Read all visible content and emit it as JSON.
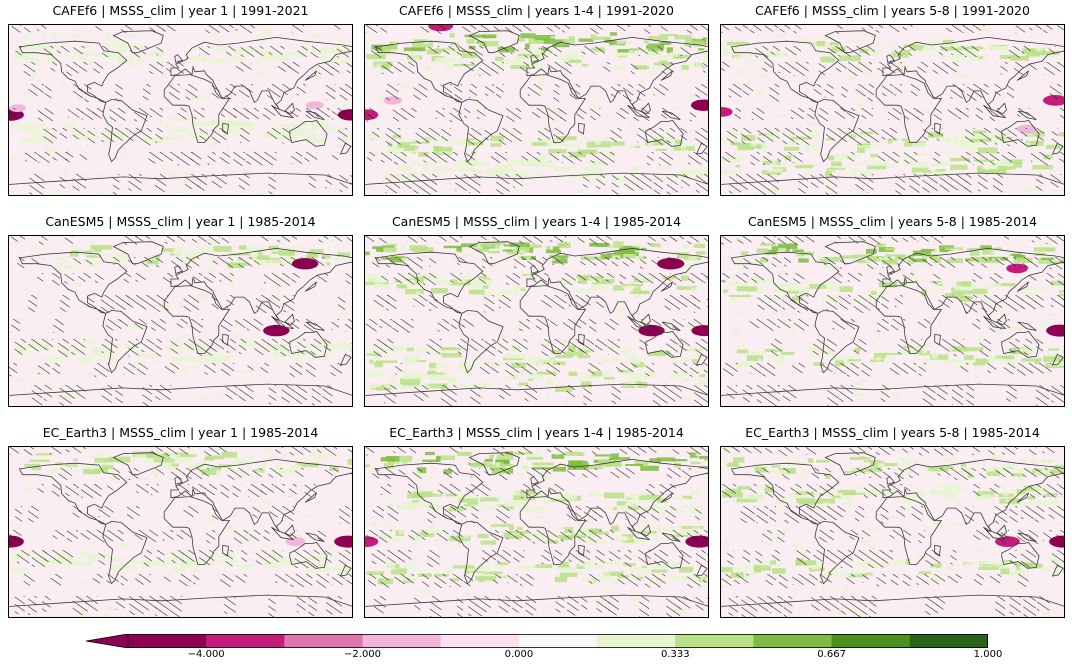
{
  "colors": {
    "scale": [
      "#8e0152",
      "#c51b7d",
      "#de77ae",
      "#f1b6da",
      "#fde0ef",
      "#f7f7f7",
      "#e6f5d0",
      "#b8e186",
      "#7fbc41",
      "#4d9221",
      "#276419"
    ],
    "land_bg": "#fbeef3",
    "coast": "#3a3a3a",
    "hatch": "#1a1a1a"
  },
  "chart_data": [
    {
      "type": "heatmap",
      "title": "CAFEf6 | MSSS_clim | year 1 | 1991-2021",
      "model": "CAFEf6",
      "lead": "year 1",
      "green_bands": [
        {
          "lat": 60,
          "strength": 0.25
        },
        {
          "lat": -20,
          "strength": 0.2
        }
      ],
      "pink_spots": [
        {
          "lon": -178,
          "lat": -5,
          "strength": 1.0
        },
        {
          "lon": 178,
          "lat": -5,
          "strength": 0.9
        },
        {
          "lon": 140,
          "lat": 5,
          "strength": 0.35
        },
        {
          "lon": -170,
          "lat": 2,
          "strength": 0.3
        }
      ]
    },
    {
      "type": "heatmap",
      "title": "CAFEf6 | MSSS_clim | years 1-4 | 1991-2020",
      "model": "CAFEf6",
      "lead": "years 1-4",
      "green_bands": [
        {
          "lat": 72,
          "strength": 0.7
        },
        {
          "lat": 55,
          "strength": 0.5
        },
        {
          "lat": -35,
          "strength": 0.45
        },
        {
          "lat": -60,
          "strength": 0.4
        }
      ],
      "pink_spots": [
        {
          "lon": -178,
          "lat": -5,
          "strength": 0.8
        },
        {
          "lon": 175,
          "lat": 5,
          "strength": 0.9
        },
        {
          "lon": -150,
          "lat": 10,
          "strength": 0.4
        },
        {
          "lon": -100,
          "lat": 88,
          "strength": 0.8
        }
      ]
    },
    {
      "type": "heatmap",
      "title": "CAFEf6 | MSSS_clim | years 5-8 | 1991-2020",
      "model": "CAFEf6",
      "lead": "years 5-8",
      "green_bands": [
        {
          "lat": 65,
          "strength": 0.6
        },
        {
          "lat": -30,
          "strength": 0.5
        },
        {
          "lat": -55,
          "strength": 0.6
        }
      ],
      "pink_spots": [
        {
          "lon": -178,
          "lat": -2,
          "strength": 0.6
        },
        {
          "lon": 170,
          "lat": 10,
          "strength": 0.8
        },
        {
          "lon": 140,
          "lat": -20,
          "strength": 0.5
        }
      ]
    },
    {
      "type": "heatmap",
      "title": "CanESM5 | MSSS_clim | year 1 | 1985-2014",
      "model": "CanESM5",
      "lead": "year 1",
      "green_bands": [
        {
          "lat": 70,
          "strength": 0.5
        },
        {
          "lat": -30,
          "strength": 0.3
        }
      ],
      "pink_spots": [
        {
          "lon": 100,
          "lat": -10,
          "strength": 0.9
        },
        {
          "lon": 130,
          "lat": 60,
          "strength": 0.9
        }
      ]
    },
    {
      "type": "heatmap",
      "title": "CanESM5 | MSSS_clim | years 1-4 | 1985-2014",
      "model": "CanESM5",
      "lead": "years 1-4",
      "green_bands": [
        {
          "lat": 75,
          "strength": 0.75
        },
        {
          "lat": 40,
          "strength": 0.55
        },
        {
          "lat": -35,
          "strength": 0.6
        },
        {
          "lat": -60,
          "strength": 0.5
        }
      ],
      "pink_spots": [
        {
          "lon": 120,
          "lat": -10,
          "strength": 0.9
        },
        {
          "lon": 175,
          "lat": -10,
          "strength": 0.85
        },
        {
          "lon": 140,
          "lat": 60,
          "strength": 0.95
        }
      ]
    },
    {
      "type": "heatmap",
      "title": "CanESM5 | MSSS_clim | years 5-8 | 1985-2014",
      "model": "CanESM5",
      "lead": "years 5-8",
      "green_bands": [
        {
          "lat": 72,
          "strength": 0.7
        },
        {
          "lat": 35,
          "strength": 0.5
        },
        {
          "lat": -35,
          "strength": 0.45
        }
      ],
      "pink_spots": [
        {
          "lon": 175,
          "lat": -10,
          "strength": 1.0
        },
        {
          "lon": 130,
          "lat": 55,
          "strength": 0.6
        }
      ]
    },
    {
      "type": "heatmap",
      "title": "EC_Earth3 | MSSS_clim | year 1 | 1985-2014",
      "model": "EC_Earth3",
      "lead": "year 1",
      "green_bands": [
        {
          "lat": 75,
          "strength": 0.45
        },
        {
          "lat": -30,
          "strength": 0.3
        }
      ],
      "pink_spots": [
        {
          "lon": -178,
          "lat": -10,
          "strength": 1.0
        },
        {
          "lon": 175,
          "lat": -10,
          "strength": 1.0
        },
        {
          "lon": 120,
          "lat": -10,
          "strength": 0.5
        }
      ]
    },
    {
      "type": "heatmap",
      "title": "EC_Earth3 | MSSS_clim | years 1-4 | 1985-2014",
      "model": "EC_Earth3",
      "lead": "years 1-4",
      "green_bands": [
        {
          "lat": 75,
          "strength": 0.7
        },
        {
          "lat": 35,
          "strength": 0.6
        },
        {
          "lat": 0,
          "strength": 0.5
        },
        {
          "lat": -40,
          "strength": 0.5
        }
      ],
      "pink_spots": [
        {
          "lon": -178,
          "lat": -10,
          "strength": 0.8
        },
        {
          "lon": 170,
          "lat": -10,
          "strength": 1.0
        }
      ]
    },
    {
      "type": "heatmap",
      "title": "EC_Earth3 | MSSS_clim | years 5-8 | 1985-2014",
      "model": "EC_Earth3",
      "lead": "years 5-8",
      "green_bands": [
        {
          "lat": 70,
          "strength": 0.6
        },
        {
          "lat": 40,
          "strength": 0.45
        },
        {
          "lat": -35,
          "strength": 0.45
        }
      ],
      "pink_spots": [
        {
          "lon": 120,
          "lat": -10,
          "strength": 0.8
        },
        {
          "lon": 178,
          "lat": -10,
          "strength": 1.0
        }
      ]
    }
  ],
  "colorbar": {
    "extend": "min",
    "ticks": [
      {
        "label": "−4.000",
        "index": 1
      },
      {
        "label": "−2.000",
        "index": 3
      },
      {
        "label": "0.000",
        "index": 5
      },
      {
        "label": "0.333",
        "index": 7
      },
      {
        "label": "0.667",
        "index": 9
      },
      {
        "label": "1.000",
        "index": 11
      }
    ]
  }
}
